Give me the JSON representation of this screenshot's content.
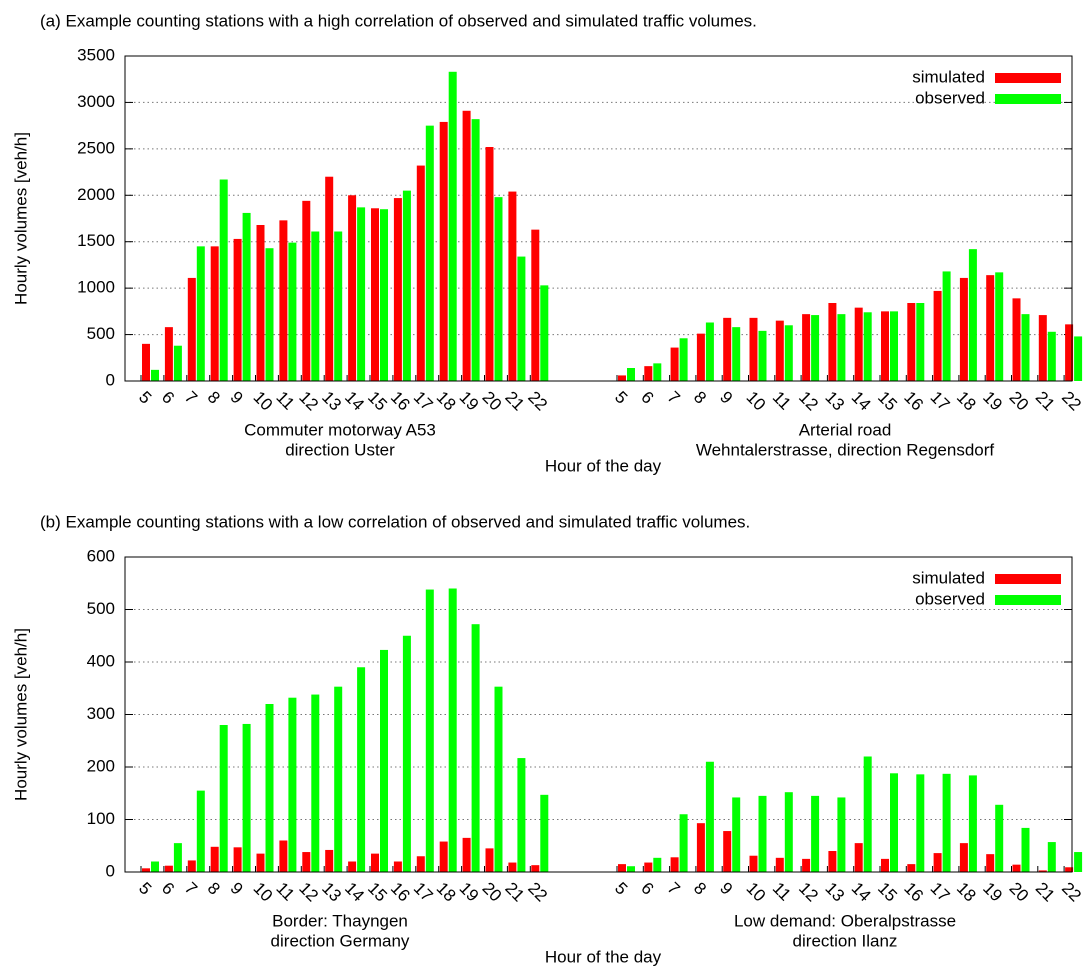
{
  "chart_data": [
    {
      "type": "bar",
      "title": "(a)  Example counting stations with a high correlation of observed and simulated traffic volumes.",
      "ylabel": "Hourly volumes [veh/h]",
      "xlabel": "Hour of the day",
      "ylim": [
        0,
        3500
      ],
      "yticks": [
        0,
        500,
        1000,
        1500,
        2000,
        2500,
        3000,
        3500
      ],
      "grid": true,
      "legend": "top-right",
      "series": [
        {
          "name": "simulated",
          "color": "#ff0000"
        },
        {
          "name": "observed",
          "color": "#00ff00"
        }
      ],
      "groups": [
        {
          "label": [
            "Commuter motorway A53",
            "direction Uster"
          ],
          "categories": [
            5,
            6,
            7,
            8,
            9,
            10,
            11,
            12,
            13,
            14,
            15,
            16,
            17,
            18,
            19,
            20,
            21,
            22
          ],
          "values": [
            [
              400,
              580,
              1110,
              1450,
              1530,
              1680,
              1730,
              1940,
              2200,
              2000,
              1860,
              1970,
              2320,
              2790,
              2910,
              2520,
              2040,
              1630
            ],
            [
              120,
              380,
              1450,
              2170,
              1810,
              1430,
              1490,
              1610,
              1610,
              1870,
              1850,
              2050,
              2750,
              3330,
              2820,
              1980,
              1340,
              1030
            ]
          ]
        },
        {
          "label": [
            "Arterial road",
            "Wehntalerstrasse, direction Regensdorf"
          ],
          "categories": [
            5,
            6,
            7,
            8,
            9,
            10,
            11,
            12,
            13,
            14,
            15,
            16,
            17,
            18,
            19,
            20,
            21,
            22
          ],
          "values": [
            [
              60,
              160,
              360,
              510,
              680,
              680,
              650,
              720,
              840,
              790,
              750,
              840,
              970,
              1110,
              1140,
              890,
              710,
              610
            ],
            [
              140,
              190,
              460,
              630,
              580,
              540,
              600,
              710,
              720,
              740,
              750,
              840,
              1180,
              1420,
              1170,
              720,
              530,
              480
            ]
          ]
        }
      ]
    },
    {
      "type": "bar",
      "title": "(b)  Example counting stations with a low correlation of observed and simulated traffic volumes.",
      "ylabel": "Hourly volumes [veh/h]",
      "xlabel": "Hour of the day",
      "ylim": [
        0,
        600
      ],
      "yticks": [
        0,
        100,
        200,
        300,
        400,
        500,
        600
      ],
      "grid": true,
      "legend": "top-right",
      "series": [
        {
          "name": "simulated",
          "color": "#ff0000"
        },
        {
          "name": "observed",
          "color": "#00ff00"
        }
      ],
      "groups": [
        {
          "label": [
            "Border: Thayngen",
            "direction Germany"
          ],
          "categories": [
            5,
            6,
            7,
            8,
            9,
            10,
            11,
            12,
            13,
            14,
            15,
            16,
            17,
            18,
            19,
            20,
            21,
            22
          ],
          "values": [
            [
              7,
              12,
              22,
              48,
              47,
              35,
              60,
              38,
              42,
              20,
              35,
              20,
              30,
              58,
              65,
              45,
              18,
              13
            ],
            [
              20,
              55,
              155,
              280,
              282,
              320,
              332,
              338,
              353,
              390,
              423,
              450,
              538,
              540,
              472,
              353,
              217,
              147
            ]
          ]
        },
        {
          "label": [
            "Low demand: Oberalpstrasse",
            "direction Ilanz"
          ],
          "categories": [
            5,
            6,
            7,
            8,
            9,
            10,
            11,
            12,
            13,
            14,
            15,
            16,
            17,
            18,
            19,
            20,
            21,
            22
          ],
          "values": [
            [
              15,
              18,
              28,
              93,
              78,
              31,
              27,
              25,
              40,
              55,
              25,
              15,
              36,
              55,
              34,
              14,
              3,
              9
            ],
            [
              11,
              27,
              110,
              210,
              142,
              145,
              152,
              145,
              142,
              220,
              188,
              186,
              187,
              184,
              128,
              84,
              57,
              38
            ]
          ]
        }
      ]
    }
  ]
}
